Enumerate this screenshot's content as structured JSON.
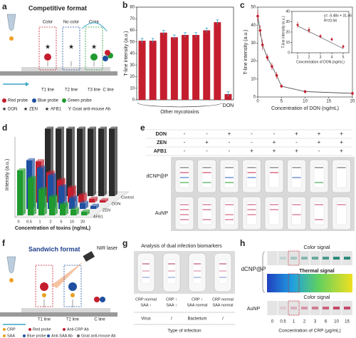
{
  "panel_labels": [
    "a",
    "b",
    "c",
    "d",
    "e",
    "f",
    "g",
    "h"
  ],
  "competitive_format": {
    "title": "Competitive format",
    "signals": [
      "Color",
      "No color",
      "Color"
    ],
    "lines": [
      "T1 line",
      "T2 line",
      "T3 line",
      "C line"
    ],
    "probes": [
      "Red probe",
      "Blue probe",
      "Green probe"
    ],
    "targets": [
      "DON",
      "ZEN",
      "AFB1"
    ],
    "antibody": "Goat anti-mouse Ab"
  },
  "chart_data": [
    {
      "type": "bar",
      "y_label": "T-line intensity (a.u.)",
      "categories": [
        null,
        null,
        null,
        null,
        null,
        null,
        null,
        null,
        "DON"
      ],
      "values": [
        51,
        51,
        58,
        54,
        56,
        56,
        60,
        67,
        5
      ],
      "errors": [
        2,
        2,
        2,
        2,
        2,
        2,
        2,
        2,
        2
      ],
      "color": "#c41e2e",
      "error_color": "#3aa6c8",
      "ylim": [
        0,
        80
      ],
      "yticks": [
        0,
        10,
        20,
        30,
        40,
        50,
        60,
        70,
        80
      ],
      "annotation": "Other mycotoxins"
    },
    {
      "type": "scatter",
      "y_label": "T-line intensity (a.u.)",
      "x_label": "Concentration of DON (ng/mL)",
      "x": [
        0,
        0.5,
        1,
        2,
        3,
        4,
        5,
        10,
        20
      ],
      "values": [
        45,
        37,
        29,
        22,
        17,
        12,
        6,
        3,
        2
      ],
      "errors": [
        3,
        3,
        3,
        2,
        2,
        2,
        1,
        1,
        1
      ],
      "color": "#c41e2e",
      "line_color": "#444",
      "xlim": [
        0,
        20
      ],
      "xticks": [
        0,
        5,
        10,
        15,
        20
      ],
      "ylim": [
        0,
        50
      ],
      "yticks": [
        0,
        10,
        20,
        30,
        40,
        50
      ],
      "inset": {
        "x": [
          1,
          2,
          3,
          4,
          5
        ],
        "values": [
          27,
          22,
          16,
          13,
          6
        ],
        "errors": [
          3,
          3,
          2,
          2,
          2
        ],
        "xlim": [
          0.5,
          5.5
        ],
        "xticks": [
          1,
          2,
          3,
          4,
          5
        ],
        "ylim": [
          0,
          40
        ],
        "yticks": [
          0,
          10,
          20,
          30,
          40
        ],
        "x_label": "Concentration of DON (ng/mL)",
        "y_label": "T-line intensity (a.u.)",
        "equation": "y= -5.48x + 31.46",
        "r_squared": "R²=0.94",
        "fit": {
          "slope": -5.48,
          "intercept": 31.46
        }
      }
    },
    {
      "type": "bar3d",
      "y_label": "Intensity (a.u.)",
      "x_label": "Concentration of toxins (ng/mL)",
      "categories": [
        "0",
        "0.5",
        "1",
        "2",
        "5",
        "10",
        "20"
      ],
      "ylim": [
        0,
        100
      ],
      "series": [
        {
          "name": "AFB1",
          "color": "#1f9a2e",
          "values": [
            60,
            50,
            35,
            25,
            15,
            8,
            5
          ]
        },
        {
          "name": "ZEN",
          "color": "#1f4fa0",
          "values": [
            65,
            55,
            45,
            30,
            15,
            8,
            4
          ]
        },
        {
          "name": "DON",
          "color": "#c41e2e",
          "values": [
            55,
            40,
            30,
            20,
            10,
            5,
            3
          ]
        },
        {
          "name": "Control",
          "color": "#2a2a2a",
          "values": [
            90,
            90,
            90,
            90,
            90,
            90,
            90
          ]
        }
      ]
    }
  ],
  "multiplex_test": {
    "analytes": [
      "DON",
      "ZEN",
      "AFB1"
    ],
    "rows": [
      [
        "-",
        "-",
        "+",
        "-",
        "-",
        "+",
        "+",
        "+"
      ],
      [
        "-",
        "+",
        "-",
        "-",
        "+",
        "-",
        "+",
        "+"
      ],
      [
        "-",
        "-",
        "-",
        "+",
        "+",
        "+",
        "-",
        "+"
      ]
    ],
    "strip_types": [
      "dCNP@P",
      "AuNP"
    ]
  },
  "sandwich_format": {
    "title": "Sandwich format",
    "laser": "NIR laser",
    "lines": [
      "T1 line",
      "T2 line",
      "C line"
    ],
    "legend": [
      "CRP",
      "Red probe",
      "Anti-CRP Ab",
      "SAA",
      "Blue probe",
      "Anti-SAA Ab",
      "Goat anti-mouse Ab"
    ]
  },
  "infection_analysis": {
    "title": "Analysis of dual infection biomarkers",
    "columns": [
      {
        "crp": "CRP normal",
        "saa": "SAA ↑",
        "type": "Virus"
      },
      {
        "crp": "CRP ↑",
        "saa": "SAA ↑",
        "type": "/"
      },
      {
        "crp": "CRP ↑",
        "saa": "SAA normal",
        "type": "Bacterium"
      },
      {
        "crp": "CRP normal",
        "saa": "SAA normal",
        "type": "/"
      }
    ],
    "axis_label": "Type of infection"
  },
  "crp_signals": {
    "probe_labels": [
      "dCNP@P",
      "AuNP"
    ],
    "signals": [
      "Color signal",
      "Thermal signal",
      "Color signal"
    ],
    "concentrations": [
      "0",
      "0.5",
      "1",
      "2",
      "3",
      "6",
      "10",
      "15"
    ],
    "axis_label": "Concentration of CRP (μg/mL)"
  }
}
